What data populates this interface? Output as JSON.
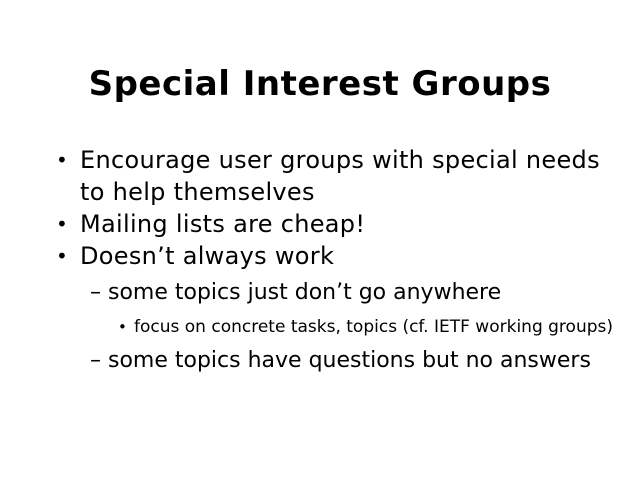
{
  "slide": {
    "title": "Special Interest Groups",
    "bullet_symbol": "•",
    "dash_symbol": "–",
    "items": [
      "Encourage user groups with special needs to help themselves",
      "Mailing lists are cheap!",
      "Doesn’t always work"
    ],
    "sub_items": [
      "some topics just don’t go anywhere",
      "some topics have questions but no answers"
    ],
    "sub_sub_items": [
      "focus on concrete tasks, topics (cf. IETF working groups)"
    ]
  }
}
